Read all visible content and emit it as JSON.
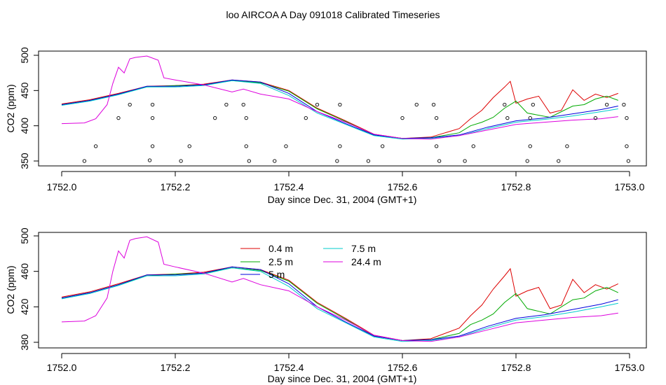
{
  "title": "loo AIRCOA A  Day 091018  Calibrated Timeseries",
  "colors": {
    "0.4 m": "#dd0000",
    "2.5 m": "#00aa00",
    "5 m": "#0000dd",
    "7.5 m": "#00cccc",
    "24.4 m": "#dd00dd",
    "markers": "#000000"
  },
  "chart_data": [
    {
      "type": "line",
      "panel": "top",
      "xlabel": "Day since Dec. 31, 2004 (GMT+1)",
      "ylabel": "CO2 (ppm)",
      "xlim": [
        1752.0,
        1753.0
      ],
      "ylim": [
        350,
        500
      ],
      "xticks": [
        "1752.0",
        "1752.2",
        "1752.4",
        "1752.6",
        "1752.8",
        "1753.0"
      ],
      "yticks": [
        "350",
        "400",
        "450",
        "500"
      ],
      "legend": "none",
      "series": [
        {
          "name": "0.4 m",
          "x": [
            1752.0,
            1752.05,
            1752.1,
            1752.15,
            1752.2,
            1752.25,
            1752.3,
            1752.35,
            1752.4,
            1752.45,
            1752.5,
            1752.55,
            1752.6,
            1752.65,
            1752.7,
            1752.72,
            1752.74,
            1752.76,
            1752.78,
            1752.79,
            1752.8,
            1752.82,
            1752.84,
            1752.86,
            1752.88,
            1752.9,
            1752.92,
            1752.94,
            1752.96,
            1752.98
          ],
          "y": [
            431,
            437,
            446,
            456,
            457,
            459,
            465,
            462,
            450,
            425,
            407,
            388,
            382,
            384,
            396,
            410,
            422,
            440,
            455,
            463,
            432,
            438,
            442,
            418,
            422,
            451,
            436,
            445,
            440,
            446
          ]
        },
        {
          "name": "2.5 m",
          "x": [
            1752.0,
            1752.05,
            1752.1,
            1752.15,
            1752.2,
            1752.25,
            1752.3,
            1752.35,
            1752.4,
            1752.45,
            1752.5,
            1752.55,
            1752.6,
            1752.65,
            1752.7,
            1752.72,
            1752.74,
            1752.76,
            1752.78,
            1752.8,
            1752.82,
            1752.84,
            1752.86,
            1752.88,
            1752.9,
            1752.92,
            1752.94,
            1752.96,
            1752.98
          ],
          "y": [
            430,
            436,
            445,
            455,
            457,
            458,
            464,
            461,
            449,
            424,
            406,
            387,
            382,
            383,
            390,
            400,
            405,
            412,
            425,
            435,
            418,
            415,
            412,
            420,
            428,
            430,
            438,
            442,
            436
          ]
        },
        {
          "name": "5 m",
          "x": [
            1752.0,
            1752.05,
            1752.1,
            1752.15,
            1752.2,
            1752.25,
            1752.3,
            1752.35,
            1752.4,
            1752.45,
            1752.5,
            1752.55,
            1752.6,
            1752.65,
            1752.7,
            1752.75,
            1752.8,
            1752.85,
            1752.9,
            1752.95,
            1752.98
          ],
          "y": [
            430,
            436,
            445,
            456,
            456,
            458,
            465,
            462,
            446,
            420,
            403,
            387,
            382,
            383,
            387,
            398,
            407,
            411,
            417,
            423,
            428
          ]
        },
        {
          "name": "7.5 m",
          "x": [
            1752.0,
            1752.05,
            1752.1,
            1752.15,
            1752.2,
            1752.25,
            1752.3,
            1752.35,
            1752.4,
            1752.45,
            1752.5,
            1752.55,
            1752.6,
            1752.65,
            1752.7,
            1752.75,
            1752.8,
            1752.85,
            1752.9,
            1752.95,
            1752.98
          ],
          "y": [
            429,
            435,
            444,
            455,
            455,
            457,
            464,
            460,
            443,
            418,
            402,
            386,
            381,
            382,
            386,
            396,
            405,
            409,
            414,
            420,
            424
          ]
        },
        {
          "name": "24.4 m",
          "x": [
            1752.0,
            1752.04,
            1752.06,
            1752.08,
            1752.09,
            1752.1,
            1752.11,
            1752.12,
            1752.13,
            1752.15,
            1752.17,
            1752.18,
            1752.2,
            1752.25,
            1752.3,
            1752.32,
            1752.35,
            1752.4,
            1752.45,
            1752.5,
            1752.55,
            1752.6,
            1752.65,
            1752.7,
            1752.75,
            1752.8,
            1752.85,
            1752.9,
            1752.95,
            1752.98
          ],
          "y": [
            403,
            404,
            410,
            430,
            460,
            483,
            475,
            495,
            497,
            499,
            493,
            468,
            465,
            458,
            448,
            452,
            445,
            438,
            420,
            405,
            388,
            382,
            381,
            386,
            394,
            402,
            405,
            408,
            410,
            413
          ]
        }
      ],
      "markers": {
        "x": [
          1752.04,
          1752.06,
          1752.1,
          1752.12,
          1752.155,
          1752.16,
          1752.16,
          1752.16,
          1752.21,
          1752.225,
          1752.27,
          1752.29,
          1752.32,
          1752.325,
          1752.325,
          1752.33,
          1752.375,
          1752.395,
          1752.43,
          1752.45,
          1752.485,
          1752.49,
          1752.49,
          1752.54,
          1752.565,
          1752.6,
          1752.625,
          1752.655,
          1752.66,
          1752.66,
          1752.665,
          1752.71,
          1752.725,
          1752.785,
          1752.78,
          1752.82,
          1752.825,
          1752.825,
          1752.83,
          1752.875,
          1752.89,
          1752.94,
          1752.96,
          1752.99,
          1752.995,
          1752.995,
          1752.998
        ],
        "y": [
          350,
          371,
          411,
          430,
          351,
          371,
          411,
          430,
          350,
          371,
          411,
          430,
          430,
          411,
          371,
          350,
          350,
          371,
          411,
          430,
          350,
          371,
          430,
          350,
          371,
          411,
          430,
          430,
          411,
          371,
          350,
          350,
          371,
          411,
          430,
          350,
          371,
          411,
          430,
          350,
          371,
          411,
          430,
          430,
          411,
          371,
          350
        ]
      }
    },
    {
      "type": "line",
      "panel": "bottom",
      "xlabel": "Day since Dec. 31, 2004 (GMT+1)",
      "ylabel": "CO2 (ppm)",
      "xlim": [
        1752.0,
        1753.0
      ],
      "ylim": [
        380,
        500
      ],
      "xticks": [
        "1752.0",
        "1752.2",
        "1752.4",
        "1752.6",
        "1752.8",
        "1753.0"
      ],
      "yticks": [
        "380",
        "420",
        "460",
        "500"
      ],
      "legend": "top-left",
      "legend_entries": [
        "0.4 m",
        "2.5 m",
        "5 m",
        "7.5 m",
        "24.4 m"
      ],
      "series_ref": "same as top panel"
    }
  ]
}
